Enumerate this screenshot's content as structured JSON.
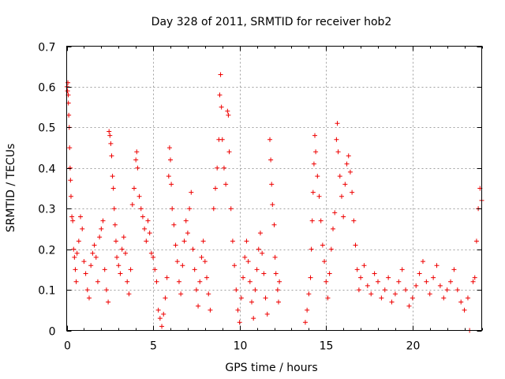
{
  "chart_data": {
    "type": "scatter",
    "title": "Day 328 of 2011, SRMTID for receiver hob2",
    "xlabel": "GPS time / hours",
    "ylabel": "SRMTID / TECUs",
    "xlim": [
      0,
      24
    ],
    "ylim": [
      0,
      0.7
    ],
    "xticks": [
      0,
      5,
      10,
      15,
      20
    ],
    "yticks": [
      0,
      0.1,
      0.2,
      0.3,
      0.4,
      0.5,
      0.6,
      0.7
    ],
    "xtick_labels": [
      "0",
      "5",
      "10",
      "15",
      "20"
    ],
    "ytick_labels": [
      "0",
      "0.1",
      "0.2",
      "0.3",
      "0.4",
      "0.5",
      "0.6",
      "0.7"
    ],
    "grid": true,
    "marker": "+",
    "color": "#ee0000",
    "series": [
      {
        "name": "SRMTID",
        "points": [
          [
            0.02,
            0.6
          ],
          [
            0.05,
            0.59
          ],
          [
            0.07,
            0.61
          ],
          [
            0.09,
            0.58
          ],
          [
            0.1,
            0.56
          ],
          [
            0.12,
            0.53
          ],
          [
            0.15,
            0.5
          ],
          [
            0.17,
            0.45
          ],
          [
            0.2,
            0.4
          ],
          [
            0.22,
            0.37
          ],
          [
            0.25,
            0.33
          ],
          [
            0.3,
            0.28
          ],
          [
            0.35,
            0.27
          ],
          [
            0.4,
            0.2
          ],
          [
            0.45,
            0.18
          ],
          [
            0.5,
            0.15
          ],
          [
            0.55,
            0.12
          ],
          [
            0.6,
            0.19
          ],
          [
            0.7,
            0.22
          ],
          [
            0.8,
            0.28
          ],
          [
            0.9,
            0.25
          ],
          [
            1.0,
            0.17
          ],
          [
            1.1,
            0.14
          ],
          [
            1.2,
            0.1
          ],
          [
            1.3,
            0.08
          ],
          [
            1.4,
            0.16
          ],
          [
            1.5,
            0.19
          ],
          [
            1.6,
            0.21
          ],
          [
            1.7,
            0.18
          ],
          [
            1.8,
            0.12
          ],
          [
            1.9,
            0.23
          ],
          [
            2.0,
            0.25
          ],
          [
            2.1,
            0.27
          ],
          [
            2.2,
            0.15
          ],
          [
            2.3,
            0.1
          ],
          [
            2.4,
            0.07
          ],
          [
            2.45,
            0.49
          ],
          [
            2.5,
            0.48
          ],
          [
            2.55,
            0.46
          ],
          [
            2.6,
            0.43
          ],
          [
            2.65,
            0.38
          ],
          [
            2.7,
            0.35
          ],
          [
            2.75,
            0.3
          ],
          [
            2.8,
            0.26
          ],
          [
            2.85,
            0.22
          ],
          [
            2.9,
            0.18
          ],
          [
            3.0,
            0.16
          ],
          [
            3.1,
            0.14
          ],
          [
            3.2,
            0.2
          ],
          [
            3.3,
            0.23
          ],
          [
            3.4,
            0.19
          ],
          [
            3.5,
            0.12
          ],
          [
            3.6,
            0.09
          ],
          [
            3.7,
            0.15
          ],
          [
            3.8,
            0.31
          ],
          [
            3.9,
            0.35
          ],
          [
            4.0,
            0.42
          ],
          [
            4.05,
            0.44
          ],
          [
            4.1,
            0.4
          ],
          [
            4.2,
            0.33
          ],
          [
            4.3,
            0.3
          ],
          [
            4.4,
            0.28
          ],
          [
            4.5,
            0.25
          ],
          [
            4.6,
            0.22
          ],
          [
            4.7,
            0.27
          ],
          [
            4.8,
            0.24
          ],
          [
            4.9,
            0.19
          ],
          [
            5.0,
            0.18
          ],
          [
            5.1,
            0.15
          ],
          [
            5.2,
            0.12
          ],
          [
            5.3,
            0.05
          ],
          [
            5.4,
            0.03
          ],
          [
            5.5,
            0.01
          ],
          [
            5.6,
            0.04
          ],
          [
            5.7,
            0.08
          ],
          [
            5.8,
            0.13
          ],
          [
            5.9,
            0.38
          ],
          [
            5.95,
            0.45
          ],
          [
            6.0,
            0.42
          ],
          [
            6.05,
            0.36
          ],
          [
            6.1,
            0.3
          ],
          [
            6.2,
            0.26
          ],
          [
            6.3,
            0.21
          ],
          [
            6.4,
            0.17
          ],
          [
            6.5,
            0.12
          ],
          [
            6.6,
            0.09
          ],
          [
            6.7,
            0.16
          ],
          [
            6.8,
            0.22
          ],
          [
            6.9,
            0.27
          ],
          [
            7.0,
            0.24
          ],
          [
            7.1,
            0.3
          ],
          [
            7.2,
            0.34
          ],
          [
            7.3,
            0.2
          ],
          [
            7.4,
            0.15
          ],
          [
            7.5,
            0.1
          ],
          [
            7.6,
            0.06
          ],
          [
            7.7,
            0.12
          ],
          [
            7.8,
            0.18
          ],
          [
            7.9,
            0.22
          ],
          [
            8.0,
            0.17
          ],
          [
            8.1,
            0.13
          ],
          [
            8.2,
            0.09
          ],
          [
            8.3,
            0.05
          ],
          [
            8.5,
            0.3
          ],
          [
            8.6,
            0.35
          ],
          [
            8.7,
            0.4
          ],
          [
            8.8,
            0.47
          ],
          [
            8.85,
            0.58
          ],
          [
            8.9,
            0.63
          ],
          [
            8.95,
            0.55
          ],
          [
            9.0,
            0.47
          ],
          [
            9.1,
            0.4
          ],
          [
            9.2,
            0.36
          ],
          [
            9.3,
            0.54
          ],
          [
            9.35,
            0.53
          ],
          [
            9.4,
            0.44
          ],
          [
            9.5,
            0.3
          ],
          [
            9.6,
            0.22
          ],
          [
            9.7,
            0.16
          ],
          [
            9.8,
            0.1
          ],
          [
            9.9,
            0.05
          ],
          [
            10.0,
            0.02
          ],
          [
            10.1,
            0.08
          ],
          [
            10.2,
            0.13
          ],
          [
            10.3,
            0.18
          ],
          [
            10.4,
            0.22
          ],
          [
            10.5,
            0.17
          ],
          [
            10.6,
            0.12
          ],
          [
            10.7,
            0.07
          ],
          [
            10.8,
            0.03
          ],
          [
            10.9,
            0.1
          ],
          [
            11.0,
            0.15
          ],
          [
            11.1,
            0.2
          ],
          [
            11.2,
            0.24
          ],
          [
            11.3,
            0.19
          ],
          [
            11.4,
            0.14
          ],
          [
            11.5,
            0.08
          ],
          [
            11.6,
            0.04
          ],
          [
            11.75,
            0.47
          ],
          [
            11.8,
            0.42
          ],
          [
            11.85,
            0.36
          ],
          [
            11.9,
            0.31
          ],
          [
            12.0,
            0.26
          ],
          [
            12.05,
            0.18
          ],
          [
            12.1,
            0.14
          ],
          [
            12.2,
            0.1
          ],
          [
            12.25,
            0.07
          ],
          [
            12.3,
            0.12
          ],
          [
            13.8,
            0.02
          ],
          [
            13.9,
            0.05
          ],
          [
            14.0,
            0.09
          ],
          [
            14.1,
            0.13
          ],
          [
            14.15,
            0.2
          ],
          [
            14.2,
            0.27
          ],
          [
            14.25,
            0.34
          ],
          [
            14.3,
            0.41
          ],
          [
            14.35,
            0.48
          ],
          [
            14.4,
            0.44
          ],
          [
            14.5,
            0.38
          ],
          [
            14.6,
            0.33
          ],
          [
            14.7,
            0.27
          ],
          [
            14.8,
            0.21
          ],
          [
            14.9,
            0.17
          ],
          [
            15.0,
            0.12
          ],
          [
            15.1,
            0.08
          ],
          [
            15.2,
            0.14
          ],
          [
            15.3,
            0.2
          ],
          [
            15.4,
            0.25
          ],
          [
            15.5,
            0.29
          ],
          [
            15.6,
            0.47
          ],
          [
            15.65,
            0.51
          ],
          [
            15.7,
            0.44
          ],
          [
            15.8,
            0.38
          ],
          [
            15.9,
            0.33
          ],
          [
            16.0,
            0.28
          ],
          [
            16.1,
            0.36
          ],
          [
            16.2,
            0.41
          ],
          [
            16.3,
            0.43
          ],
          [
            16.4,
            0.39
          ],
          [
            16.5,
            0.34
          ],
          [
            16.6,
            0.27
          ],
          [
            16.7,
            0.21
          ],
          [
            16.8,
            0.15
          ],
          [
            16.9,
            0.1
          ],
          [
            17.0,
            0.13
          ],
          [
            17.2,
            0.16
          ],
          [
            17.4,
            0.11
          ],
          [
            17.6,
            0.09
          ],
          [
            17.8,
            0.14
          ],
          [
            18.0,
            0.12
          ],
          [
            18.2,
            0.08
          ],
          [
            18.4,
            0.1
          ],
          [
            18.6,
            0.13
          ],
          [
            18.8,
            0.07
          ],
          [
            19.0,
            0.09
          ],
          [
            19.2,
            0.12
          ],
          [
            19.4,
            0.15
          ],
          [
            19.6,
            0.1
          ],
          [
            19.8,
            0.06
          ],
          [
            20.0,
            0.08
          ],
          [
            20.2,
            0.11
          ],
          [
            20.4,
            0.14
          ],
          [
            20.6,
            0.17
          ],
          [
            20.8,
            0.12
          ],
          [
            21.0,
            0.09
          ],
          [
            21.2,
            0.13
          ],
          [
            21.4,
            0.16
          ],
          [
            21.6,
            0.11
          ],
          [
            21.8,
            0.08
          ],
          [
            22.0,
            0.1
          ],
          [
            22.2,
            0.12
          ],
          [
            22.4,
            0.15
          ],
          [
            22.6,
            0.1
          ],
          [
            22.8,
            0.07
          ],
          [
            23.0,
            0.05
          ],
          [
            23.2,
            0.08
          ],
          [
            23.3,
            0.0
          ],
          [
            23.5,
            0.12
          ],
          [
            23.6,
            0.13
          ],
          [
            23.7,
            0.22
          ],
          [
            23.8,
            0.3
          ],
          [
            23.9,
            0.35
          ],
          [
            24.0,
            0.32
          ]
        ]
      }
    ]
  }
}
